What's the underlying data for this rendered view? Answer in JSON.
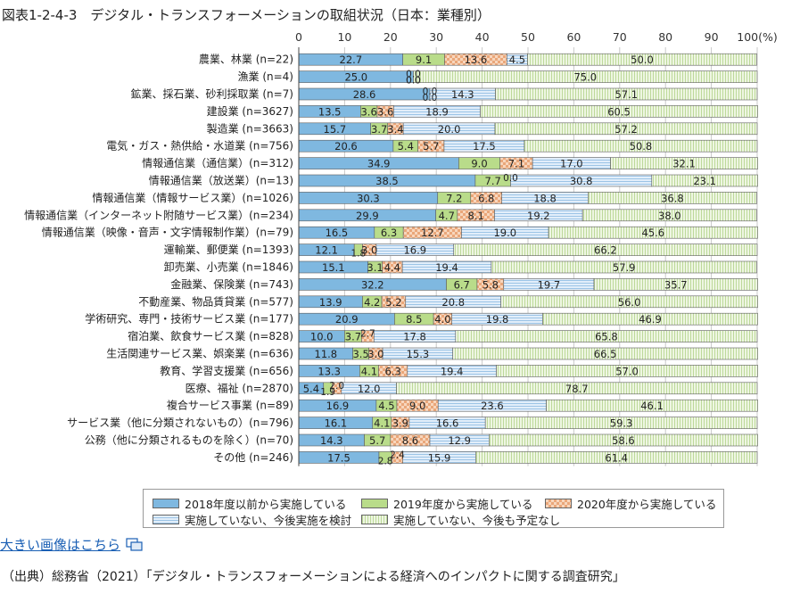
{
  "page": {
    "title": "図表1-2-4-3　デジタル・トランスフォーメーションの取組状況（日本：業種別）",
    "link_text": "大きい画像はこちら",
    "link_icon": "enlarge-image-icon",
    "source": "（出典）総務省（2021）「デジタル・トランスフォーメーションによる経済へのインパクトに関する調査研究」"
  },
  "chart_data": {
    "type": "bar",
    "orientation": "horizontal",
    "stacked": true,
    "xlim": [
      0,
      100
    ],
    "x_ticks": [
      "0",
      "10",
      "20",
      "30",
      "40",
      "50",
      "60",
      "70",
      "80",
      "90",
      "100(%)"
    ],
    "grid": true,
    "legend_position": "bottom",
    "categories": [
      "農業、林業 (n=22)",
      "漁業 (n=4)",
      "鉱業、採石業、砂利採取業 (n=7)",
      "建設業 (n=3627)",
      "製造業 (n=3663)",
      "電気・ガス・熱供給・水道業 (n=756)",
      "情報通信業（通信業）(n=312)",
      "情報通信業（放送業）(n=13)",
      "情報通信業（情報サービス業）(n=1026)",
      "情報通信業（インターネット附随サービス業）(n=234)",
      "情報通信業（映像・音声・文字情報制作業）(n=79)",
      "運輸業、郵便業 (n=1393)",
      "卸売業、小売業 (n=1846)",
      "金融業、保険業 (n=743)",
      "不動産業、物品賃貸業 (n=577)",
      "学術研究、専門・技術サービス業 (n=177)",
      "宿泊業、飲食サービス業 (n=828)",
      "生活関連サービス業、娯楽業 (n=636)",
      "教育、学習支援業 (n=656)",
      "医療、福祉 (n=2870)",
      "複合サービス事業 (n=89)",
      "サービス業（他に分類されないもの）(n=796)",
      "公務（他に分類されるものを除く）(n=70)",
      "その他 (n=246)"
    ],
    "series": [
      {
        "name": "2018年度以前から実施している",
        "color": "#7fb8e0",
        "pattern": "solid",
        "values": [
          22.7,
          25.0,
          28.6,
          13.5,
          15.7,
          20.6,
          34.9,
          38.5,
          30.3,
          29.9,
          16.5,
          12.1,
          15.1,
          32.2,
          13.9,
          20.9,
          10.0,
          11.8,
          13.3,
          5.4,
          16.9,
          16.1,
          14.3,
          17.5
        ]
      },
      {
        "name": "2019年度から実施している",
        "color": "#b9dc8a",
        "pattern": "solid",
        "values": [
          9.1,
          0.0,
          0.0,
          3.6,
          3.7,
          5.4,
          9.0,
          7.7,
          7.2,
          4.7,
          6.3,
          1.8,
          3.1,
          6.7,
          4.2,
          8.5,
          3.7,
          3.5,
          4.1,
          1.9,
          4.5,
          4.1,
          5.7,
          2.8
        ]
      },
      {
        "name": "2020年度から実施している",
        "color": "#f2bf98",
        "pattern": "checker",
        "values": [
          13.6,
          0.0,
          0.0,
          3.6,
          3.4,
          5.7,
          7.1,
          0.0,
          6.8,
          8.1,
          12.7,
          3.0,
          4.4,
          5.8,
          5.2,
          4.0,
          2.7,
          3.0,
          6.3,
          2.0,
          9.0,
          3.9,
          8.6,
          2.4
        ]
      },
      {
        "name": "実施していない、今後実施を検討",
        "color": "#cfe4f6",
        "pattern": "hlines",
        "values": [
          4.5,
          0.0,
          14.3,
          18.9,
          20.0,
          17.5,
          17.0,
          30.8,
          18.8,
          19.2,
          19.0,
          16.9,
          19.4,
          19.7,
          20.8,
          19.8,
          17.8,
          15.3,
          19.4,
          12.0,
          23.6,
          16.6,
          12.9,
          15.9
        ]
      },
      {
        "name": "実施していない、今後も予定なし",
        "color": "#e1efc8",
        "pattern": "vlines",
        "values": [
          50.0,
          75.0,
          57.1,
          60.5,
          57.2,
          50.8,
          32.1,
          23.1,
          36.8,
          38.0,
          45.6,
          66.2,
          57.9,
          35.7,
          56.0,
          46.9,
          65.8,
          66.5,
          57.0,
          78.7,
          46.1,
          59.3,
          58.6,
          61.4
        ]
      }
    ],
    "value_labels": [
      [
        "22.7",
        "9.1",
        "13.6",
        "4.5",
        "50.0"
      ],
      [
        "25.0",
        "0.0",
        "0.0",
        "0.0",
        "75.0"
      ],
      [
        "28.6",
        "0.0",
        "0.0",
        "14.3",
        "57.1"
      ],
      [
        "13.5",
        "3.6",
        "3.6",
        "18.9",
        "60.5"
      ],
      [
        "15.7",
        "3.7",
        "3.4",
        "20.0",
        "57.2"
      ],
      [
        "20.6",
        "5.4",
        "5.7",
        "17.5",
        "50.8"
      ],
      [
        "34.9",
        "9.0",
        "7.1",
        "17.0",
        "32.1"
      ],
      [
        "38.5",
        "7.7",
        "0.0",
        "30.8",
        "23.1"
      ],
      [
        "30.3",
        "7.2",
        "6.8",
        "18.8",
        "36.8"
      ],
      [
        "29.9",
        "4.7",
        "8.1",
        "19.2",
        "38.0"
      ],
      [
        "16.5",
        "6.3",
        "12.7",
        "19.0",
        "45.6"
      ],
      [
        "12.1",
        "1.8",
        "3.0",
        "16.9",
        "66.2"
      ],
      [
        "15.1",
        "3.1",
        "4.4",
        "19.4",
        "57.9"
      ],
      [
        "32.2",
        "6.7",
        "5.8",
        "19.7",
        "35.7"
      ],
      [
        "13.9",
        "4.2",
        "5.2",
        "20.8",
        "56.0"
      ],
      [
        "20.9",
        "8.5",
        "4.0",
        "19.8",
        "46.9"
      ],
      [
        "10.0",
        "3.7",
        "2.7",
        "17.8",
        "65.8"
      ],
      [
        "11.8",
        "3.5",
        "3.0",
        "15.3",
        "66.5"
      ],
      [
        "13.3",
        "4.1",
        "6.3",
        "19.4",
        "57.0"
      ],
      [
        "5.4",
        "1.9",
        "2.0",
        "12.0",
        "78.7"
      ],
      [
        "16.9",
        "4.5",
        "9.0",
        "23.6",
        "46.1"
      ],
      [
        "16.1",
        "4.1",
        "3.9",
        "16.6",
        "59.3"
      ],
      [
        "14.3",
        "5.7",
        "8.6",
        "12.9",
        "58.6"
      ],
      [
        "17.5",
        "2.8",
        "2.4",
        "15.9",
        "61.4"
      ]
    ]
  }
}
